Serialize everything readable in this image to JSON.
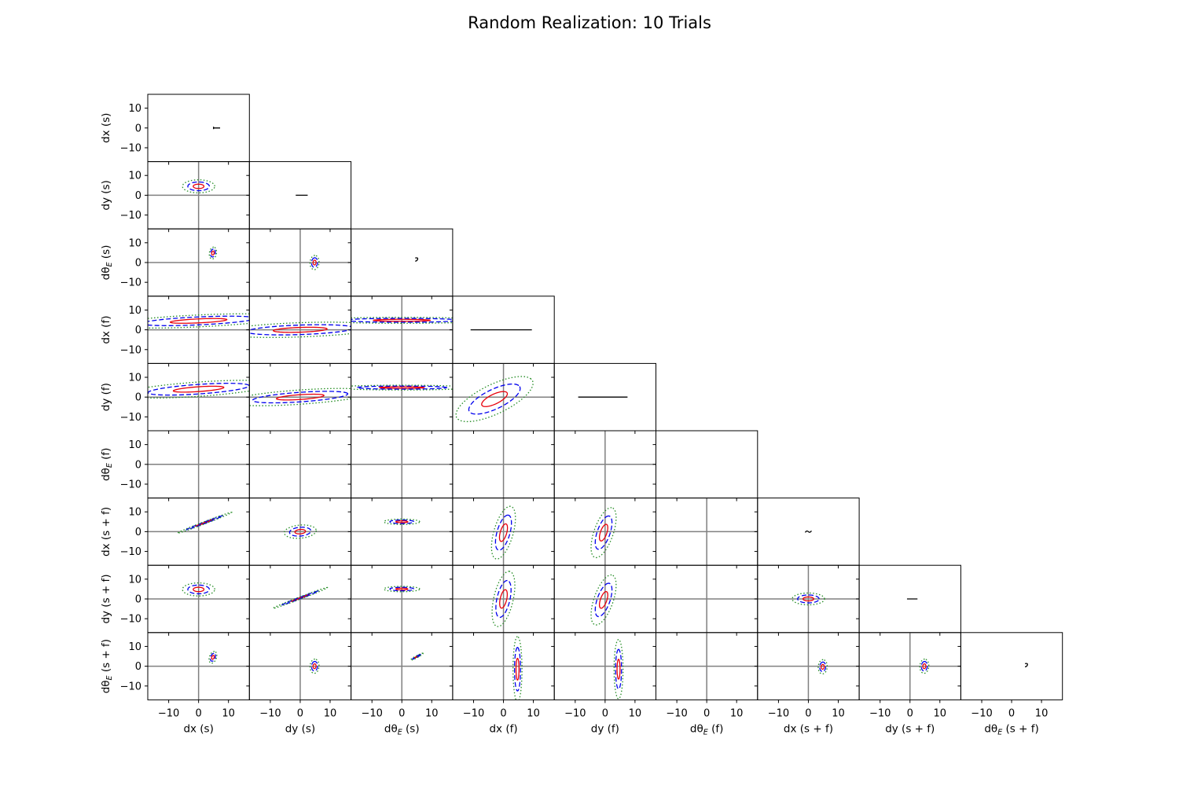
{
  "chart_data": {
    "type": "corner-plot",
    "title": "Random Realization: 10 Trials",
    "parameters": [
      "dx (s)",
      "dy (s)",
      "dθE (s)",
      "dx (f)",
      "dy (f)",
      "dθE (f)",
      "dx (s + f)",
      "dy (s + f)",
      "dθE (s + f)"
    ],
    "param_labels": [
      {
        "base": "dx",
        "sub": "",
        "suffix": " (s)"
      },
      {
        "base": "dy",
        "sub": "",
        "suffix": " (s)"
      },
      {
        "base": "dθ",
        "sub": "E",
        "suffix": " (s)"
      },
      {
        "base": "dx",
        "sub": "",
        "suffix": " (f)"
      },
      {
        "base": "dy",
        "sub": "",
        "suffix": " (f)"
      },
      {
        "base": "dθ",
        "sub": "E",
        "suffix": " (f)"
      },
      {
        "base": "dx",
        "sub": "",
        "suffix": " (s + f)"
      },
      {
        "base": "dy",
        "sub": "",
        "suffix": " (s + f)"
      },
      {
        "base": "dθ",
        "sub": "E",
        "suffix": " (s + f)"
      }
    ],
    "axis_range": [
      -17,
      17
    ],
    "ticks": [
      -10,
      0,
      10
    ],
    "tick_labels": [
      "−10",
      "0",
      "10"
    ],
    "reference_lines": {
      "x": 0,
      "y": 0,
      "color": "#808080"
    },
    "contour_styles": [
      {
        "level": "1-sigma",
        "color": "#e8000b",
        "dash": "solid"
      },
      {
        "level": "2-sigma",
        "color": "#0000ee",
        "dash": "dashed"
      },
      {
        "level": "3-sigma",
        "color": "#228b22",
        "dash": "dotted"
      }
    ],
    "diagonal": [
      {
        "param": 0,
        "kind": "vline",
        "x": 5,
        "y_range": [
          -0.6,
          0.6
        ]
      },
      {
        "param": 1,
        "kind": "hline",
        "y": 0,
        "x_range": [
          -1.5,
          2.5
        ]
      },
      {
        "param": 2,
        "kind": "hook",
        "x": 5,
        "y": 1.5
      },
      {
        "param": 3,
        "kind": "hline",
        "y": 0,
        "x_range": [
          -11,
          9.5
        ]
      },
      {
        "param": 4,
        "kind": "hline",
        "y": 0,
        "x_range": [
          -9,
          7.5
        ]
      },
      {
        "param": 5,
        "kind": "none"
      },
      {
        "param": 6,
        "kind": "tilde",
        "x": 0,
        "y": 0
      },
      {
        "param": 7,
        "kind": "hline",
        "y": 0,
        "x_range": [
          -1,
          2.5
        ]
      },
      {
        "param": 8,
        "kind": "hook",
        "x": 5,
        "y": 0.5
      }
    ],
    "ellipses": [
      {
        "row": 1,
        "col": 0,
        "cx": 0,
        "cy": 4.5,
        "a": 1.8,
        "b": 1.1,
        "angle": 0
      },
      {
        "row": 2,
        "col": 0,
        "cx": 4.8,
        "cy": 4.8,
        "a": 1.0,
        "b": 0.4,
        "angle": 85
      },
      {
        "row": 2,
        "col": 1,
        "cx": 4.8,
        "cy": 0,
        "a": 1.2,
        "b": 0.5,
        "angle": 88
      },
      {
        "row": 3,
        "col": 0,
        "cx": 0,
        "cy": 4.5,
        "a": 9.5,
        "b": 1.0,
        "angle": 4
      },
      {
        "row": 3,
        "col": 1,
        "cx": 0,
        "cy": 0,
        "a": 9.0,
        "b": 1.2,
        "angle": 3
      },
      {
        "row": 3,
        "col": 2,
        "cx": 0,
        "cy": 4.8,
        "a": 9.5,
        "b": 0.5,
        "angle": 0
      },
      {
        "row": 4,
        "col": 0,
        "cx": 0,
        "cy": 4,
        "a": 8.5,
        "b": 1.2,
        "angle": 6
      },
      {
        "row": 4,
        "col": 1,
        "cx": 0,
        "cy": 0,
        "a": 8.0,
        "b": 1.2,
        "angle": 6
      },
      {
        "row": 4,
        "col": 2,
        "cx": 0,
        "cy": 4.8,
        "a": 7.5,
        "b": 0.4,
        "angle": 0
      },
      {
        "row": 4,
        "col": 3,
        "cx": -3,
        "cy": -1,
        "a": 5.3,
        "b": 2.2,
        "angle": 40
      },
      {
        "row": 6,
        "col": 0,
        "cx": 2,
        "cy": 4.5,
        "a": 3.5,
        "b": 0.18,
        "angle": 30
      },
      {
        "row": 6,
        "col": 1,
        "cx": 0,
        "cy": 0,
        "a": 1.8,
        "b": 1.1,
        "angle": 10
      },
      {
        "row": 6,
        "col": 2,
        "cx": 0,
        "cy": 5,
        "a": 2.0,
        "b": 0.45,
        "angle": 0
      },
      {
        "row": 6,
        "col": 3,
        "cx": 0,
        "cy": -0.5,
        "a": 4.5,
        "b": 1.1,
        "angle": 80
      },
      {
        "row": 6,
        "col": 4,
        "cx": -0.5,
        "cy": -0.5,
        "a": 4.3,
        "b": 1.1,
        "angle": 78
      },
      {
        "row": 7,
        "col": 0,
        "cx": 0,
        "cy": 4.8,
        "a": 1.8,
        "b": 1.1,
        "angle": 0
      },
      {
        "row": 7,
        "col": 1,
        "cx": 0,
        "cy": 0.5,
        "a": 3.5,
        "b": 0.18,
        "angle": 30
      },
      {
        "row": 7,
        "col": 2,
        "cx": 0,
        "cy": 5,
        "a": 2.0,
        "b": 0.45,
        "angle": 0
      },
      {
        "row": 7,
        "col": 3,
        "cx": 0,
        "cy": 0,
        "a": 4.7,
        "b": 1.1,
        "angle": 82
      },
      {
        "row": 7,
        "col": 4,
        "cx": -0.5,
        "cy": -0.5,
        "a": 4.3,
        "b": 1.1,
        "angle": 78
      },
      {
        "row": 7,
        "col": 6,
        "cx": 0,
        "cy": 0,
        "a": 1.8,
        "b": 1.0,
        "angle": 0
      },
      {
        "row": 8,
        "col": 0,
        "cx": 4.8,
        "cy": 4.5,
        "a": 1.0,
        "b": 0.4,
        "angle": 80
      },
      {
        "row": 8,
        "col": 1,
        "cx": 4.8,
        "cy": 0,
        "a": 1.2,
        "b": 0.5,
        "angle": 88
      },
      {
        "row": 8,
        "col": 2,
        "cx": 5,
        "cy": 4.8,
        "a": 0.9,
        "b": 0.15,
        "angle": 40
      },
      {
        "row": 8,
        "col": 3,
        "cx": 4.7,
        "cy": -1.5,
        "a": 5.5,
        "b": 0.5,
        "angle": 90
      },
      {
        "row": 8,
        "col": 4,
        "cx": 4.5,
        "cy": -1.5,
        "a": 5.0,
        "b": 0.5,
        "angle": 90
      },
      {
        "row": 8,
        "col": 6,
        "cx": 4.8,
        "cy": -0.3,
        "a": 1.2,
        "b": 0.5,
        "angle": 88
      },
      {
        "row": 8,
        "col": 7,
        "cx": 4.8,
        "cy": 0,
        "a": 1.2,
        "b": 0.5,
        "angle": 88
      }
    ]
  }
}
